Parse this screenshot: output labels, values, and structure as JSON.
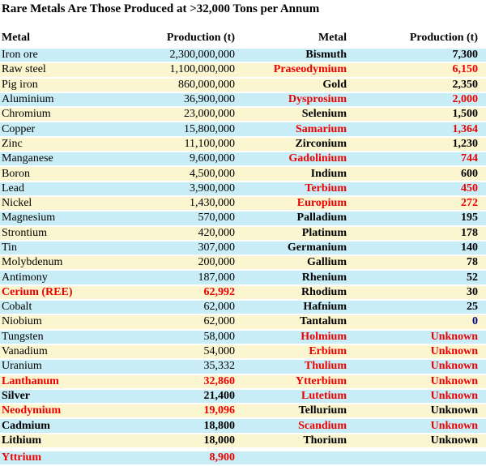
{
  "chart_data": {
    "type": "table",
    "title": "Rare Metals Are Those Produced at >32,000 Tons per Annum",
    "columns": [
      "Metal",
      "Production (t)",
      "Metal",
      "Production (t)"
    ],
    "legend_note_colors": {
      "row_stripe_cyan": "#c9edf6",
      "row_stripe_yellow": "#fbf6cf",
      "rare_metal_text": "#ee0000",
      "common_metal_text": "#000000",
      "zero_value_text": "#000080"
    },
    "rows": [
      {
        "bg": "cyan",
        "gap": false,
        "cells": [
          [
            "Iron ore",
            "plain"
          ],
          [
            "2,300,000,000",
            "plain"
          ],
          [
            "Bismuth",
            "bold"
          ],
          [
            "7,300",
            "bold"
          ]
        ]
      },
      {
        "bg": "yellow",
        "gap": false,
        "cells": [
          [
            "Raw steel",
            "plain"
          ],
          [
            "1,100,000,000",
            "plain"
          ],
          [
            "Praseodymium",
            "red"
          ],
          [
            "6,150",
            "red"
          ]
        ]
      },
      {
        "bg": "yellow",
        "gap": false,
        "cells": [
          [
            "Pig iron",
            "plain"
          ],
          [
            "860,000,000",
            "plain"
          ],
          [
            "Gold",
            "bold"
          ],
          [
            "2,350",
            "bold"
          ]
        ]
      },
      {
        "bg": "cyan",
        "gap": false,
        "cells": [
          [
            "Aluminium",
            "plain"
          ],
          [
            "36,900,000",
            "plain"
          ],
          [
            "Dysprosium",
            "red"
          ],
          [
            "2,000",
            "red"
          ]
        ]
      },
      {
        "bg": "yellow",
        "gap": false,
        "cells": [
          [
            "Chromium",
            "plain"
          ],
          [
            "23,000,000",
            "plain"
          ],
          [
            "Selenium",
            "bold"
          ],
          [
            "1,500",
            "bold"
          ]
        ]
      },
      {
        "bg": "cyan",
        "gap": false,
        "cells": [
          [
            "Copper",
            "plain"
          ],
          [
            "15,800,000",
            "plain"
          ],
          [
            "Samarium",
            "red"
          ],
          [
            "1,364",
            "red"
          ]
        ]
      },
      {
        "bg": "yellow",
        "gap": false,
        "cells": [
          [
            "Zinc",
            "plain"
          ],
          [
            "11,100,000",
            "plain"
          ],
          [
            "Zirconium",
            "bold"
          ],
          [
            "1,230",
            "bold"
          ]
        ]
      },
      {
        "bg": "cyan",
        "gap": false,
        "cells": [
          [
            "Manganese",
            "plain"
          ],
          [
            "9,600,000",
            "plain"
          ],
          [
            "Gadolinium",
            "red"
          ],
          [
            "744",
            "red"
          ]
        ]
      },
      {
        "bg": "yellow",
        "gap": false,
        "cells": [
          [
            "Boron",
            "plain"
          ],
          [
            "4,500,000",
            "plain"
          ],
          [
            "Indium",
            "bold"
          ],
          [
            "600",
            "bold"
          ]
        ]
      },
      {
        "bg": "cyan",
        "gap": false,
        "cells": [
          [
            "Lead",
            "plain"
          ],
          [
            "3,900,000",
            "plain"
          ],
          [
            "Terbium",
            "red"
          ],
          [
            "450",
            "red"
          ]
        ]
      },
      {
        "bg": "yellow",
        "gap": false,
        "cells": [
          [
            "Nickel",
            "plain"
          ],
          [
            "1,430,000",
            "plain"
          ],
          [
            "Europium",
            "red"
          ],
          [
            "272",
            "red"
          ]
        ]
      },
      {
        "bg": "cyan",
        "gap": false,
        "cells": [
          [
            "Magnesium",
            "plain"
          ],
          [
            "570,000",
            "plain"
          ],
          [
            "Palladium",
            "bold"
          ],
          [
            "195",
            "bold"
          ]
        ]
      },
      {
        "bg": "yellow",
        "gap": false,
        "cells": [
          [
            "Strontium",
            "plain"
          ],
          [
            "420,000",
            "plain"
          ],
          [
            "Platinum",
            "bold"
          ],
          [
            "178",
            "bold"
          ]
        ]
      },
      {
        "bg": "cyan",
        "gap": false,
        "cells": [
          [
            "Tin",
            "plain"
          ],
          [
            "307,000",
            "plain"
          ],
          [
            "Germanium",
            "bold"
          ],
          [
            "140",
            "bold"
          ]
        ]
      },
      {
        "bg": "yellow",
        "gap": false,
        "cells": [
          [
            "Molybdenum",
            "plain"
          ],
          [
            "200,000",
            "plain"
          ],
          [
            "Gallium",
            "bold"
          ],
          [
            "78",
            "bold"
          ]
        ]
      },
      {
        "bg": "cyan",
        "gap": false,
        "cells": [
          [
            "Antimony",
            "plain"
          ],
          [
            "187,000",
            "plain"
          ],
          [
            "Rhenium",
            "bold"
          ],
          [
            "52",
            "bold"
          ]
        ]
      },
      {
        "bg": "yellow",
        "gap": false,
        "cells": [
          [
            "Cerium (REE)",
            "red"
          ],
          [
            "62,992",
            "red"
          ],
          [
            "Rhodium",
            "bold"
          ],
          [
            "30",
            "bold"
          ]
        ]
      },
      {
        "bg": "cyan",
        "gap": false,
        "cells": [
          [
            "Cobalt",
            "plain"
          ],
          [
            "62,000",
            "plain"
          ],
          [
            "Hafnium",
            "bold"
          ],
          [
            "25",
            "bold"
          ]
        ]
      },
      {
        "bg": "yellow",
        "gap": false,
        "cells": [
          [
            "Niobium",
            "plain"
          ],
          [
            "62,000",
            "plain"
          ],
          [
            "Tantalum",
            "bold"
          ],
          [
            "0",
            "navy"
          ]
        ]
      },
      {
        "bg": "cyan",
        "gap": false,
        "cells": [
          [
            "Tungsten",
            "plain"
          ],
          [
            "58,000",
            "plain"
          ],
          [
            "Holmium",
            "red"
          ],
          [
            "Unknown",
            "red"
          ]
        ]
      },
      {
        "bg": "yellow",
        "gap": false,
        "cells": [
          [
            "Vanadium",
            "plain"
          ],
          [
            "54,000",
            "plain"
          ],
          [
            "Erbium",
            "red"
          ],
          [
            "Unknown",
            "red"
          ]
        ]
      },
      {
        "bg": "cyan",
        "gap": false,
        "cells": [
          [
            "Uranium",
            "plain"
          ],
          [
            "35,332",
            "plain"
          ],
          [
            "Thulium",
            "red"
          ],
          [
            "Unknown",
            "red"
          ]
        ]
      },
      {
        "bg": "yellow",
        "gap": false,
        "cells": [
          [
            "Lanthanum",
            "red"
          ],
          [
            "32,860",
            "red"
          ],
          [
            "Ytterbium",
            "red"
          ],
          [
            "Unknown",
            "red"
          ]
        ]
      },
      {
        "bg": "cyan",
        "gap": false,
        "cells": [
          [
            "Silver",
            "bold"
          ],
          [
            "21,400",
            "bold"
          ],
          [
            "Lutetium",
            "red"
          ],
          [
            "Unknown",
            "red"
          ]
        ]
      },
      {
        "bg": "yellow",
        "gap": false,
        "cells": [
          [
            "Neodymium",
            "red"
          ],
          [
            "19,096",
            "red"
          ],
          [
            "Tellurium",
            "bold"
          ],
          [
            "Unknown",
            "bold"
          ]
        ]
      },
      {
        "bg": "cyan",
        "gap": false,
        "cells": [
          [
            "Cadmium",
            "bold"
          ],
          [
            "18,800",
            "bold"
          ],
          [
            "Scandium",
            "red"
          ],
          [
            "Unknown",
            "red"
          ]
        ]
      },
      {
        "bg": "yellow",
        "gap": false,
        "cells": [
          [
            "Lithium",
            "bold"
          ],
          [
            "18,000",
            "bold"
          ],
          [
            "Thorium",
            "bold"
          ],
          [
            "Unknown",
            "bold"
          ]
        ]
      },
      {
        "bg": "cyan",
        "gap": true,
        "cells": [
          [
            "Yttrium",
            "red"
          ],
          [
            "8,900",
            "red"
          ],
          [
            "",
            ""
          ],
          [
            "",
            ""
          ]
        ]
      }
    ]
  }
}
